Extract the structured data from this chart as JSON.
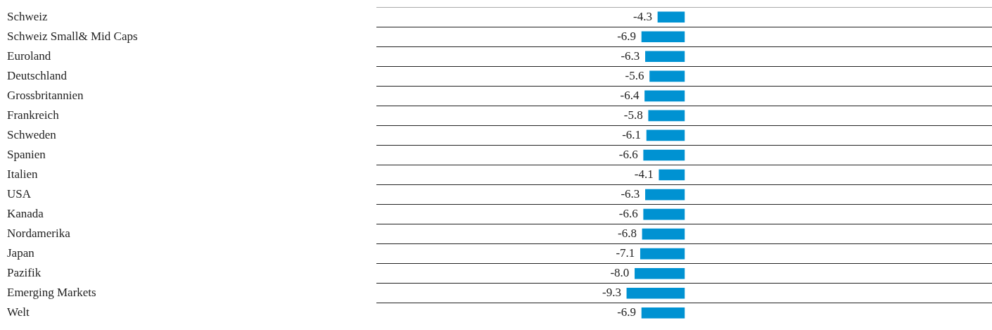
{
  "chart_data": {
    "type": "bar",
    "orientation": "horizontal",
    "categories": [
      "Schweiz",
      "Schweiz Small& Mid Caps",
      "Euroland",
      "Deutschland",
      "Grossbritannien",
      "Frankreich",
      "Schweden",
      "Spanien",
      "Italien",
      "USA",
      "Kanada",
      "Nordamerika",
      "Japan",
      "Pazifik",
      "Emerging Markets",
      "Welt"
    ],
    "values": [
      -4.3,
      -6.9,
      -6.3,
      -5.6,
      -6.4,
      -5.8,
      -6.1,
      -6.6,
      -4.1,
      -6.3,
      -6.6,
      -6.8,
      -7.1,
      -8.0,
      -9.3,
      -6.9
    ],
    "value_labels": [
      "-4.3",
      "-6.9",
      "-6.3",
      "-5.6",
      "-6.4",
      "-5.8",
      "-6.1",
      "-6.6",
      "-4.1",
      "-6.3",
      "-6.6",
      "-6.8",
      "-7.1",
      "-8.0",
      "-9.3",
      "-6.9"
    ],
    "color": "#0092d2",
    "tick_labels": "y",
    "grid": "y",
    "legend": false
  }
}
